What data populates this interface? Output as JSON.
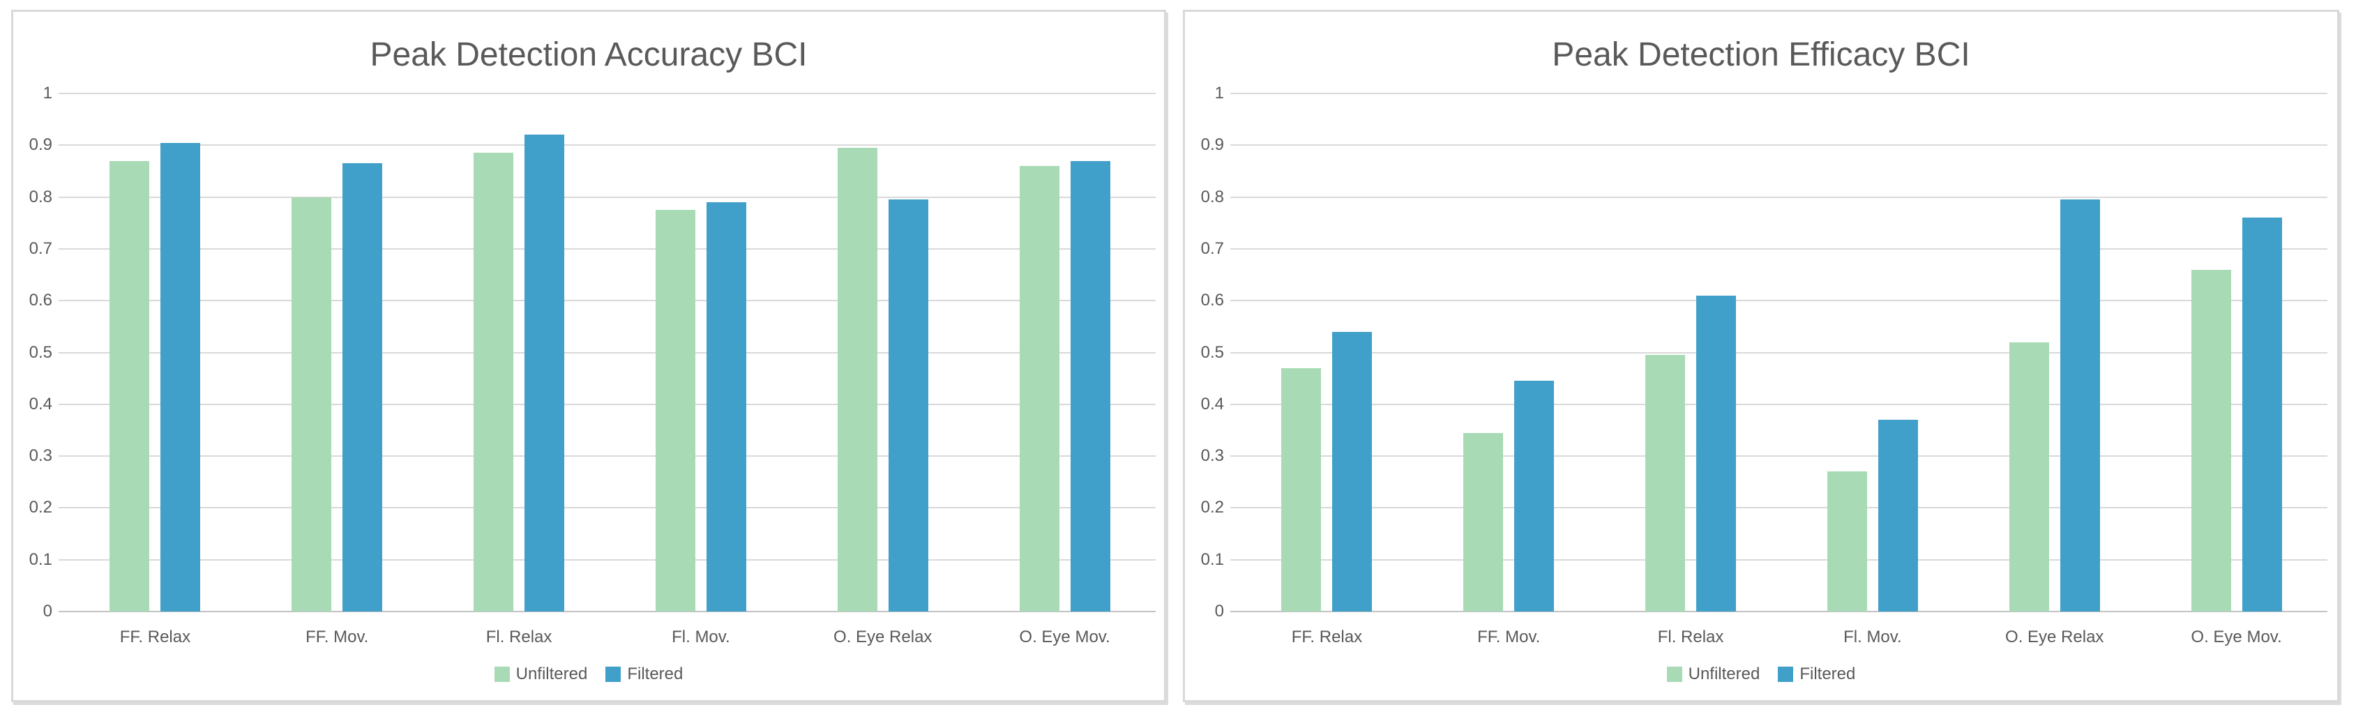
{
  "colors": {
    "unfiltered_green": "#a8dbb5",
    "filtered_blue": "#41a0c9",
    "gridline": "#d9d9d9",
    "axis_line": "#c3c3c3",
    "text_gray": "#595959",
    "panel_border": "#d9d9d9"
  },
  "chart_data": [
    {
      "type": "bar",
      "title": "Peak Detection Accuracy BCI",
      "xlabel": "",
      "ylabel": "",
      "ylim": [
        0,
        1
      ],
      "grid": true,
      "legend_position": "bottom-center",
      "yticks": [
        "1",
        "0.9",
        "0.8",
        "0.7",
        "0.6",
        "0.5",
        "0.4",
        "0.3",
        "0.2",
        "0.1",
        "0"
      ],
      "categories": [
        "FF. Relax",
        "FF. Mov.",
        "Fl. Relax",
        "Fl. Mov.",
        "O. Eye Relax",
        "O. Eye Mov."
      ],
      "series": [
        {
          "name": "Unfiltered",
          "color": "#a8dbb5",
          "values": [
            0.87,
            0.8,
            0.885,
            0.775,
            0.895,
            0.86
          ]
        },
        {
          "name": "Filtered",
          "color": "#41a0c9",
          "values": [
            0.905,
            0.865,
            0.92,
            0.79,
            0.795,
            0.87
          ]
        }
      ]
    },
    {
      "type": "bar",
      "title": "Peak Detection Efficacy BCI",
      "xlabel": "",
      "ylabel": "",
      "ylim": [
        0,
        1
      ],
      "grid": true,
      "legend_position": "bottom-center",
      "yticks": [
        "1",
        "0.9",
        "0.8",
        "0.7",
        "0.6",
        "0.5",
        "0.4",
        "0.3",
        "0.2",
        "0.1",
        "0"
      ],
      "categories": [
        "FF. Relax",
        "FF. Mov.",
        "Fl. Relax",
        "Fl. Mov.",
        "O. Eye Relax",
        "O. Eye Mov."
      ],
      "series": [
        {
          "name": "Unfiltered",
          "color": "#a8dbb5",
          "values": [
            0.47,
            0.345,
            0.495,
            0.27,
            0.52,
            0.66
          ]
        },
        {
          "name": "Filtered",
          "color": "#41a0c9",
          "values": [
            0.54,
            0.445,
            0.61,
            0.37,
            0.795,
            0.76
          ]
        }
      ]
    }
  ]
}
